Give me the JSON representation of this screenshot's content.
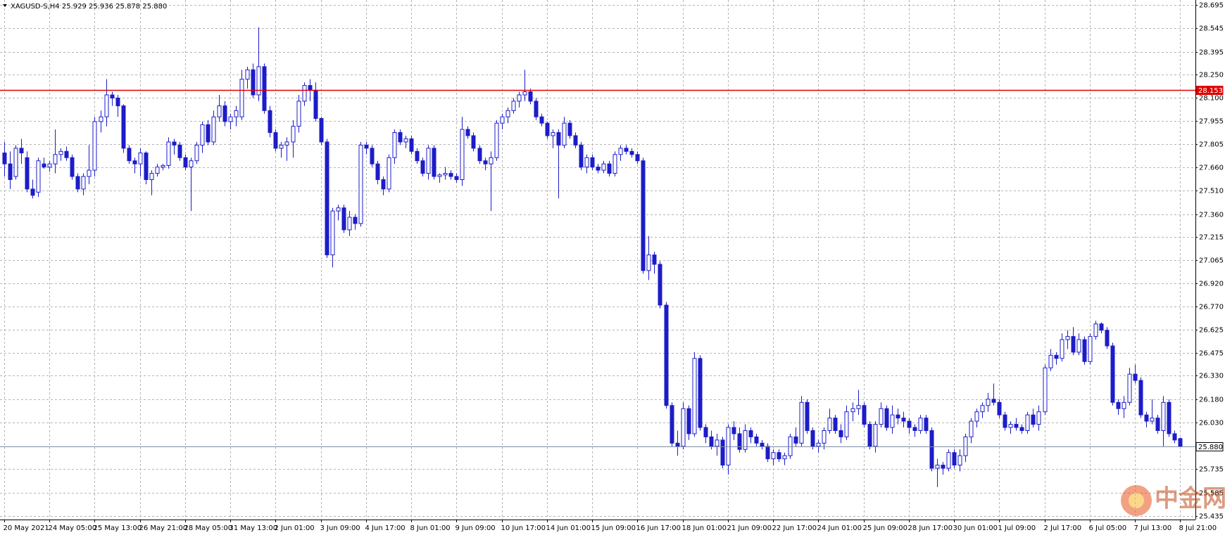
{
  "chart_data": {
    "type": "candlestick",
    "title": "XAGUSD-S,H4  25.929 25.936 25.878 25.880",
    "watermark": "中金网",
    "color": "#1c1cc8",
    "grid": true,
    "ylim": [
      25.413,
      28.725
    ],
    "yticks": [
      28.695,
      28.545,
      28.395,
      {
        "value": 28.25,
        "label": "28.250"
      },
      {
        "value": 28.1,
        "label": "28.100"
      },
      27.955,
      27.805,
      {
        "value": 27.66,
        "label": "27.660"
      },
      {
        "value": 27.51,
        "label": "27.510"
      },
      {
        "value": 27.36,
        "label": "27.360"
      },
      27.215,
      27.065,
      {
        "value": 26.92,
        "label": "26.920"
      },
      {
        "value": 26.77,
        "label": "26.770"
      },
      26.625,
      26.475,
      {
        "value": 26.33,
        "label": "26.330"
      },
      {
        "value": 26.18,
        "label": "26.180"
      },
      {
        "value": 26.03,
        "label": "26.030"
      },
      25.735,
      25.585,
      25.435
    ],
    "price_lines": [
      {
        "value": 28.153,
        "label": "28.153",
        "color": "#e00000"
      },
      {
        "value": 25.88,
        "label": "25.880",
        "color": "#7c8ca4"
      }
    ],
    "categories": [
      "20 May 2021",
      null,
      null,
      null,
      null,
      null,
      null,
      null,
      "24 May 05:00",
      null,
      null,
      null,
      null,
      null,
      null,
      null,
      "25 May 13:00",
      null,
      null,
      null,
      null,
      null,
      null,
      null,
      "26 May 21:00",
      null,
      null,
      null,
      null,
      null,
      null,
      null,
      "28 May 05:00",
      null,
      null,
      null,
      null,
      null,
      null,
      null,
      "31 May 13:00",
      null,
      null,
      null,
      null,
      null,
      null,
      null,
      "2 Jun 01:00",
      null,
      null,
      null,
      null,
      null,
      null,
      null,
      "3 Jun 09:00",
      null,
      null,
      null,
      null,
      null,
      null,
      null,
      "4 Jun 17:00",
      null,
      null,
      null,
      null,
      null,
      null,
      null,
      "8 Jun 01:00",
      null,
      null,
      null,
      null,
      null,
      null,
      null,
      "9 Jun 09:00",
      null,
      null,
      null,
      null,
      null,
      null,
      null,
      "10 Jun 17:00",
      null,
      null,
      null,
      null,
      null,
      null,
      null,
      "14 Jun 01:00",
      null,
      null,
      null,
      null,
      null,
      null,
      null,
      "15 Jun 09:00",
      null,
      null,
      null,
      null,
      null,
      null,
      null,
      "16 Jun 17:00",
      null,
      null,
      null,
      null,
      null,
      null,
      null,
      "18 Jun 01:00",
      null,
      null,
      null,
      null,
      null,
      null,
      null,
      "21 Jun 09:00",
      null,
      null,
      null,
      null,
      null,
      null,
      null,
      "22 Jun 17:00",
      null,
      null,
      null,
      null,
      null,
      null,
      null,
      "24 Jun 01:00",
      null,
      null,
      null,
      null,
      null,
      null,
      null,
      "25 Jun 09:00",
      null,
      null,
      null,
      null,
      null,
      null,
      null,
      "28 Jun 17:00",
      null,
      null,
      null,
      null,
      null,
      null,
      null,
      "30 Jun 01:00",
      null,
      null,
      null,
      null,
      null,
      null,
      null,
      "1 Jul 09:00",
      null,
      null,
      null,
      null,
      null,
      null,
      null,
      "2 Jul 17:00",
      null,
      null,
      null,
      null,
      null,
      null,
      null,
      "6 Jul 05:00",
      null,
      null,
      null,
      null,
      null,
      null,
      null,
      "7 Jul 13:00",
      null,
      null,
      null,
      null,
      null,
      null,
      null,
      "8 Jul 21:00"
    ],
    "ohlc": [
      [
        27.75,
        27.82,
        27.6,
        27.68
      ],
      [
        27.68,
        27.76,
        27.52,
        27.58
      ],
      [
        27.6,
        27.8,
        27.58,
        27.78
      ],
      [
        27.78,
        27.84,
        27.68,
        27.75
      ],
      [
        27.72,
        27.76,
        27.5,
        27.52
      ],
      [
        27.52,
        27.58,
        27.46,
        27.48
      ],
      [
        27.5,
        27.72,
        27.47,
        27.7
      ],
      [
        27.68,
        27.72,
        27.65,
        27.66
      ],
      [
        27.66,
        27.7,
        27.63,
        27.68
      ],
      [
        27.68,
        27.9,
        27.62,
        27.74
      ],
      [
        27.74,
        27.78,
        27.7,
        27.76
      ],
      [
        27.76,
        27.79,
        27.7,
        27.72
      ],
      [
        27.72,
        27.74,
        27.58,
        27.6
      ],
      [
        27.6,
        27.62,
        27.5,
        27.52
      ],
      [
        27.52,
        27.62,
        27.48,
        27.6
      ],
      [
        27.6,
        27.8,
        27.55,
        27.64
      ],
      [
        27.64,
        27.98,
        27.6,
        27.95
      ],
      [
        27.95,
        28.02,
        27.88,
        27.98
      ],
      [
        27.98,
        28.22,
        27.92,
        28.12
      ],
      [
        28.12,
        28.14,
        28.05,
        28.1
      ],
      [
        28.1,
        28.12,
        27.98,
        28.05
      ],
      [
        28.05,
        28.06,
        27.75,
        27.78
      ],
      [
        27.78,
        27.8,
        27.68,
        27.7
      ],
      [
        27.7,
        27.72,
        27.62,
        27.68
      ],
      [
        27.68,
        27.78,
        27.6,
        27.75
      ],
      [
        27.75,
        27.76,
        27.55,
        27.58
      ],
      [
        27.58,
        27.64,
        27.48,
        27.62
      ],
      [
        27.62,
        27.68,
        27.6,
        27.66
      ],
      [
        27.66,
        27.68,
        27.64,
        27.67
      ],
      [
        27.67,
        27.85,
        27.65,
        27.82
      ],
      [
        27.82,
        27.84,
        27.74,
        27.8
      ],
      [
        27.8,
        27.82,
        27.7,
        27.72
      ],
      [
        27.72,
        27.74,
        27.64,
        27.66
      ],
      [
        27.66,
        27.72,
        27.38,
        27.7
      ],
      [
        27.7,
        27.82,
        27.68,
        27.8
      ],
      [
        27.8,
        27.95,
        27.75,
        27.93
      ],
      [
        27.93,
        27.96,
        27.8,
        27.82
      ],
      [
        27.82,
        28.02,
        27.8,
        27.98
      ],
      [
        27.98,
        28.12,
        27.95,
        28.05
      ],
      [
        28.05,
        28.08,
        27.92,
        27.95
      ],
      [
        27.95,
        28.0,
        27.9,
        27.98
      ],
      [
        27.98,
        28.05,
        27.92,
        28.02
      ],
      [
        27.98,
        28.28,
        27.96,
        28.22
      ],
      [
        28.22,
        28.3,
        28.16,
        28.28
      ],
      [
        28.28,
        28.32,
        28.1,
        28.12
      ],
      [
        28.12,
        28.55,
        28.08,
        28.3
      ],
      [
        28.3,
        28.32,
        28.0,
        28.02
      ],
      [
        28.02,
        28.05,
        27.85,
        27.88
      ],
      [
        27.88,
        27.9,
        27.76,
        27.78
      ],
      [
        27.78,
        27.82,
        27.72,
        27.8
      ],
      [
        27.8,
        27.85,
        27.7,
        27.82
      ],
      [
        27.82,
        27.96,
        27.72,
        27.92
      ],
      [
        27.92,
        28.12,
        27.88,
        28.08
      ],
      [
        28.08,
        28.2,
        28.05,
        28.18
      ],
      [
        28.18,
        28.22,
        28.08,
        28.15
      ],
      [
        28.15,
        28.2,
        27.95,
        27.97
      ],
      [
        27.97,
        27.98,
        27.8,
        27.82
      ],
      [
        27.82,
        27.84,
        27.08,
        27.1
      ],
      [
        27.1,
        27.4,
        27.02,
        27.38
      ],
      [
        27.38,
        27.42,
        27.32,
        27.4
      ],
      [
        27.4,
        27.42,
        27.24,
        27.26
      ],
      [
        27.26,
        27.38,
        27.22,
        27.34
      ],
      [
        27.34,
        27.36,
        27.26,
        27.3
      ],
      [
        27.3,
        27.82,
        27.28,
        27.8
      ],
      [
        27.8,
        27.82,
        27.74,
        27.78
      ],
      [
        27.78,
        27.8,
        27.66,
        27.68
      ],
      [
        27.68,
        27.7,
        27.55,
        27.58
      ],
      [
        27.58,
        27.6,
        27.48,
        27.52
      ],
      [
        27.52,
        27.74,
        27.5,
        27.72
      ],
      [
        27.72,
        27.9,
        27.68,
        27.88
      ],
      [
        27.88,
        27.9,
        27.8,
        27.82
      ],
      [
        27.82,
        27.86,
        27.78,
        27.84
      ],
      [
        27.84,
        27.86,
        27.74,
        27.76
      ],
      [
        27.76,
        27.78,
        27.68,
        27.7
      ],
      [
        27.7,
        27.72,
        27.6,
        27.62
      ],
      [
        27.62,
        27.8,
        27.58,
        27.78
      ],
      [
        27.78,
        27.8,
        27.58,
        27.6
      ],
      [
        27.6,
        27.62,
        27.56,
        27.61
      ],
      [
        27.61,
        27.66,
        27.58,
        27.62
      ],
      [
        27.62,
        27.64,
        27.58,
        27.6
      ],
      [
        27.6,
        27.62,
        27.56,
        27.58
      ],
      [
        27.58,
        27.98,
        27.54,
        27.9
      ],
      [
        27.9,
        27.92,
        27.84,
        27.86
      ],
      [
        27.86,
        27.88,
        27.76,
        27.78
      ],
      [
        27.78,
        27.8,
        27.68,
        27.7
      ],
      [
        27.7,
        27.72,
        27.64,
        27.68
      ],
      [
        27.68,
        27.76,
        27.38,
        27.72
      ],
      [
        27.72,
        27.96,
        27.7,
        27.94
      ],
      [
        27.94,
        28.0,
        27.9,
        27.98
      ],
      [
        27.98,
        28.04,
        27.94,
        28.02
      ],
      [
        28.02,
        28.1,
        28.0,
        28.08
      ],
      [
        28.08,
        28.14,
        28.04,
        28.12
      ],
      [
        28.12,
        28.28,
        28.08,
        28.14
      ],
      [
        28.14,
        28.16,
        28.06,
        28.08
      ],
      [
        28.08,
        28.1,
        27.96,
        27.98
      ],
      [
        27.98,
        28.0,
        27.92,
        27.94
      ],
      [
        27.94,
        27.95,
        27.84,
        27.86
      ],
      [
        27.86,
        27.9,
        27.78,
        27.88
      ],
      [
        27.88,
        27.9,
        27.46,
        27.8
      ],
      [
        27.8,
        27.98,
        27.78,
        27.94
      ],
      [
        27.94,
        27.96,
        27.84,
        27.86
      ],
      [
        27.86,
        27.88,
        27.78,
        27.8
      ],
      [
        27.8,
        27.82,
        27.64,
        27.66
      ],
      [
        27.66,
        27.74,
        27.62,
        27.72
      ],
      [
        27.72,
        27.74,
        27.64,
        27.66
      ],
      [
        27.66,
        27.68,
        27.62,
        27.64
      ],
      [
        27.64,
        27.7,
        27.62,
        27.68
      ],
      [
        27.68,
        27.7,
        27.6,
        27.62
      ],
      [
        27.62,
        27.76,
        27.6,
        27.74
      ],
      [
        27.74,
        27.8,
        27.7,
        27.78
      ],
      [
        27.78,
        27.8,
        27.74,
        27.76
      ],
      [
        27.76,
        27.78,
        27.72,
        27.74
      ],
      [
        27.74,
        27.76,
        27.68,
        27.7
      ],
      [
        27.7,
        27.72,
        26.98,
        27.0
      ],
      [
        27.0,
        27.22,
        26.94,
        27.1
      ],
      [
        27.1,
        27.12,
        26.98,
        27.04
      ],
      [
        27.04,
        27.06,
        26.76,
        26.78
      ],
      [
        26.78,
        26.8,
        26.12,
        26.14
      ],
      [
        26.14,
        26.16,
        25.88,
        25.9
      ],
      [
        25.9,
        25.98,
        25.82,
        25.88
      ],
      [
        25.88,
        26.16,
        25.86,
        26.12
      ],
      [
        26.12,
        26.14,
        25.92,
        25.96
      ],
      [
        25.96,
        26.48,
        25.94,
        26.44
      ],
      [
        26.44,
        26.46,
        25.98,
        26.0
      ],
      [
        26.0,
        26.02,
        25.9,
        25.94
      ],
      [
        25.94,
        25.98,
        25.86,
        25.88
      ],
      [
        25.88,
        25.96,
        25.82,
        25.92
      ],
      [
        25.92,
        25.94,
        25.74,
        25.76
      ],
      [
        25.76,
        26.02,
        25.7,
        26.0
      ],
      [
        26.0,
        26.04,
        25.92,
        25.96
      ],
      [
        25.96,
        26.0,
        25.84,
        25.86
      ],
      [
        25.86,
        26.02,
        25.84,
        25.98
      ],
      [
        25.98,
        26.0,
        25.9,
        25.94
      ],
      [
        25.94,
        25.96,
        25.88,
        25.9
      ],
      [
        25.9,
        25.92,
        25.86,
        25.88
      ],
      [
        25.88,
        25.9,
        25.78,
        25.8
      ],
      [
        25.8,
        25.86,
        25.76,
        25.84
      ],
      [
        25.84,
        25.86,
        25.78,
        25.8
      ],
      [
        25.8,
        25.84,
        25.76,
        25.82
      ],
      [
        25.82,
        25.96,
        25.8,
        25.94
      ],
      [
        25.94,
        26.0,
        25.88,
        25.9
      ],
      [
        25.9,
        26.2,
        25.88,
        26.16
      ],
      [
        26.16,
        26.18,
        25.96,
        25.98
      ],
      [
        25.98,
        26.0,
        25.86,
        25.88
      ],
      [
        25.88,
        25.92,
        25.84,
        25.9
      ],
      [
        25.9,
        26.0,
        25.86,
        25.98
      ],
      [
        25.98,
        26.12,
        25.96,
        26.06
      ],
      [
        26.06,
        26.08,
        25.96,
        25.98
      ],
      [
        25.98,
        26.02,
        25.9,
        25.94
      ],
      [
        25.94,
        26.14,
        25.92,
        26.1
      ],
      [
        26.1,
        26.16,
        26.04,
        26.12
      ],
      [
        26.12,
        26.24,
        26.08,
        26.14
      ],
      [
        26.14,
        26.16,
        26.0,
        26.02
      ],
      [
        26.02,
        26.04,
        25.86,
        25.88
      ],
      [
        25.88,
        26.04,
        25.84,
        26.02
      ],
      [
        26.02,
        26.16,
        26.0,
        26.12
      ],
      [
        26.12,
        26.14,
        25.98,
        26.0
      ],
      [
        26.0,
        26.14,
        25.96,
        26.08
      ],
      [
        26.08,
        26.12,
        26.02,
        26.06
      ],
      [
        26.06,
        26.1,
        26.0,
        26.04
      ],
      [
        26.04,
        26.06,
        25.96,
        26.0
      ],
      [
        26.0,
        26.02,
        25.94,
        25.98
      ],
      [
        25.98,
        26.08,
        25.96,
        26.06
      ],
      [
        26.06,
        26.08,
        25.96,
        25.98
      ],
      [
        25.98,
        26.0,
        25.72,
        25.74
      ],
      [
        25.74,
        25.8,
        25.62,
        25.76
      ],
      [
        25.76,
        25.78,
        25.7,
        25.74
      ],
      [
        25.74,
        25.86,
        25.72,
        25.84
      ],
      [
        25.84,
        25.86,
        25.74,
        25.76
      ],
      [
        25.76,
        25.86,
        25.72,
        25.82
      ],
      [
        25.82,
        25.96,
        25.78,
        25.94
      ],
      [
        25.94,
        26.06,
        25.9,
        26.04
      ],
      [
        26.04,
        26.12,
        26.0,
        26.1
      ],
      [
        26.1,
        26.16,
        26.06,
        26.14
      ],
      [
        26.14,
        26.22,
        26.1,
        26.18
      ],
      [
        26.18,
        26.28,
        26.14,
        26.16
      ],
      [
        26.16,
        26.18,
        26.06,
        26.08
      ],
      [
        26.08,
        26.1,
        25.98,
        26.0
      ],
      [
        26.0,
        26.04,
        25.96,
        26.02
      ],
      [
        26.02,
        26.06,
        25.98,
        26.0
      ],
      [
        26.0,
        26.02,
        25.96,
        25.98
      ],
      [
        25.98,
        26.1,
        25.96,
        26.08
      ],
      [
        26.08,
        26.12,
        26.0,
        26.02
      ],
      [
        26.02,
        26.14,
        25.98,
        26.1
      ],
      [
        26.1,
        26.4,
        26.08,
        26.38
      ],
      [
        26.38,
        26.5,
        26.36,
        26.46
      ],
      [
        26.46,
        26.48,
        26.4,
        26.44
      ],
      [
        26.44,
        26.6,
        26.42,
        26.56
      ],
      [
        26.56,
        26.62,
        26.5,
        26.58
      ],
      [
        26.58,
        26.64,
        26.46,
        26.48
      ],
      [
        26.48,
        26.6,
        26.46,
        26.56
      ],
      [
        26.56,
        26.58,
        26.4,
        26.42
      ],
      [
        26.42,
        26.6,
        26.4,
        26.58
      ],
      [
        26.58,
        26.68,
        26.56,
        26.66
      ],
      [
        26.66,
        26.67,
        26.6,
        26.62
      ],
      [
        26.62,
        26.64,
        26.5,
        26.52
      ],
      [
        26.52,
        26.54,
        26.14,
        26.16
      ],
      [
        26.16,
        26.18,
        26.08,
        26.12
      ],
      [
        26.12,
        26.2,
        26.06,
        26.16
      ],
      [
        26.16,
        26.38,
        26.14,
        26.34
      ],
      [
        26.34,
        26.4,
        26.28,
        26.3
      ],
      [
        26.3,
        26.32,
        26.06,
        26.08
      ],
      [
        26.08,
        26.1,
        26.0,
        26.04
      ],
      [
        26.04,
        26.18,
        26.02,
        26.06
      ],
      [
        26.06,
        26.08,
        25.96,
        25.98
      ],
      [
        25.98,
        26.2,
        25.88,
        26.16
      ],
      [
        26.16,
        26.18,
        25.94,
        25.96
      ],
      [
        25.96,
        25.98,
        25.9,
        25.92
      ],
      [
        25.929,
        25.936,
        25.878,
        25.88
      ]
    ]
  }
}
